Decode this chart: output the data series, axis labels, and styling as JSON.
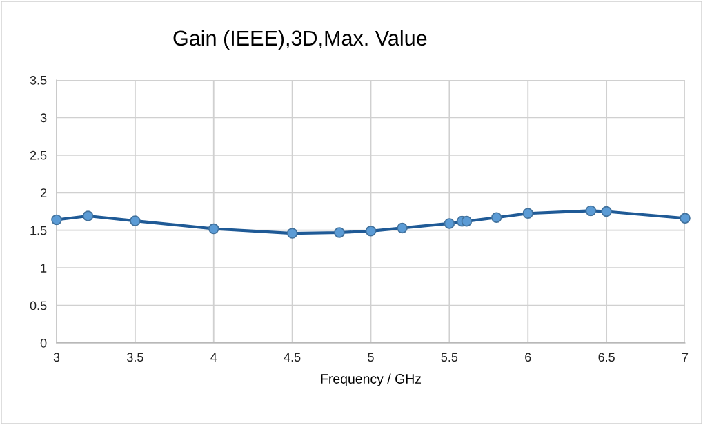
{
  "chart_data": {
    "type": "line",
    "title": "Gain (IEEE),3D,Max. Value",
    "xlabel": "Frequency / GHz",
    "x": [
      3,
      3.2,
      3.5,
      4,
      4.5,
      4.8,
      5,
      5.2,
      5.5,
      5.58,
      5.61,
      5.8,
      6,
      6.4,
      6.5,
      7
    ],
    "series": [
      {
        "color": "#1f5a96",
        "values": [
          1.64,
          1.69,
          1.625,
          1.52,
          1.46,
          1.47,
          1.49,
          1.53,
          1.59,
          1.62,
          1.62,
          1.67,
          1.725,
          1.76,
          1.75,
          1.66
        ]
      }
    ],
    "xlim": [
      3,
      7
    ],
    "xticks": [
      3,
      3.5,
      4,
      4.5,
      5,
      5.5,
      6,
      6.5,
      7
    ],
    "ylim": [
      0,
      3.5
    ],
    "yticks": [
      0,
      0.5,
      1,
      1.5,
      2,
      2.5,
      3,
      3.5
    ],
    "grid": true,
    "marker": "circle",
    "line_style": "solid",
    "legend": false
  }
}
